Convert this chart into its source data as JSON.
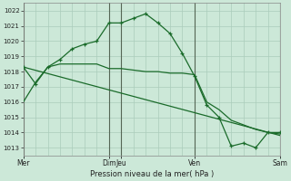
{
  "background_color": "#cce8d8",
  "grid_color": "#aaccbb",
  "line_color": "#1a6b2a",
  "xlabel": "Pression niveau de la mer( hPa )",
  "ylim": [
    1012.5,
    1022.5
  ],
  "yticks": [
    1013,
    1014,
    1015,
    1016,
    1017,
    1018,
    1019,
    1020,
    1021,
    1022
  ],
  "xlim": [
    0,
    21
  ],
  "xtick_labels": [
    "Mer",
    "Dim",
    "Jeu",
    "Ven",
    "Sam"
  ],
  "xtick_positions": [
    0,
    7,
    8,
    14,
    21
  ],
  "vline_positions": [
    0,
    7,
    8,
    14,
    21
  ],
  "series1_x": [
    0,
    1,
    2,
    3,
    4,
    5,
    6,
    7,
    8,
    9,
    10,
    11,
    12,
    13,
    14,
    15,
    16,
    17,
    18,
    19,
    20,
    21
  ],
  "series1_y": [
    1018.3,
    1017.2,
    1018.3,
    1018.8,
    1019.5,
    1019.8,
    1020.0,
    1021.2,
    1021.2,
    1021.5,
    1021.8,
    1021.2,
    1020.5,
    1019.2,
    1017.7,
    1015.8,
    1015.0,
    1013.1,
    1013.3,
    1013.0,
    1014.0,
    1014.0
  ],
  "series2_x": [
    0,
    21
  ],
  "series2_y": [
    1018.3,
    1013.8
  ],
  "series3_x": [
    0,
    1,
    2,
    3,
    4,
    5,
    6,
    7,
    8,
    9,
    10,
    11,
    12,
    13,
    14,
    15,
    16,
    17,
    18,
    19,
    20,
    21
  ],
  "series3_y": [
    1016.0,
    1017.3,
    1018.3,
    1018.5,
    1018.5,
    1018.5,
    1018.5,
    1018.2,
    1018.2,
    1018.1,
    1018.0,
    1018.0,
    1017.9,
    1017.9,
    1017.8,
    1016.0,
    1015.5,
    1014.8,
    1014.5,
    1014.2,
    1014.0,
    1013.9
  ]
}
